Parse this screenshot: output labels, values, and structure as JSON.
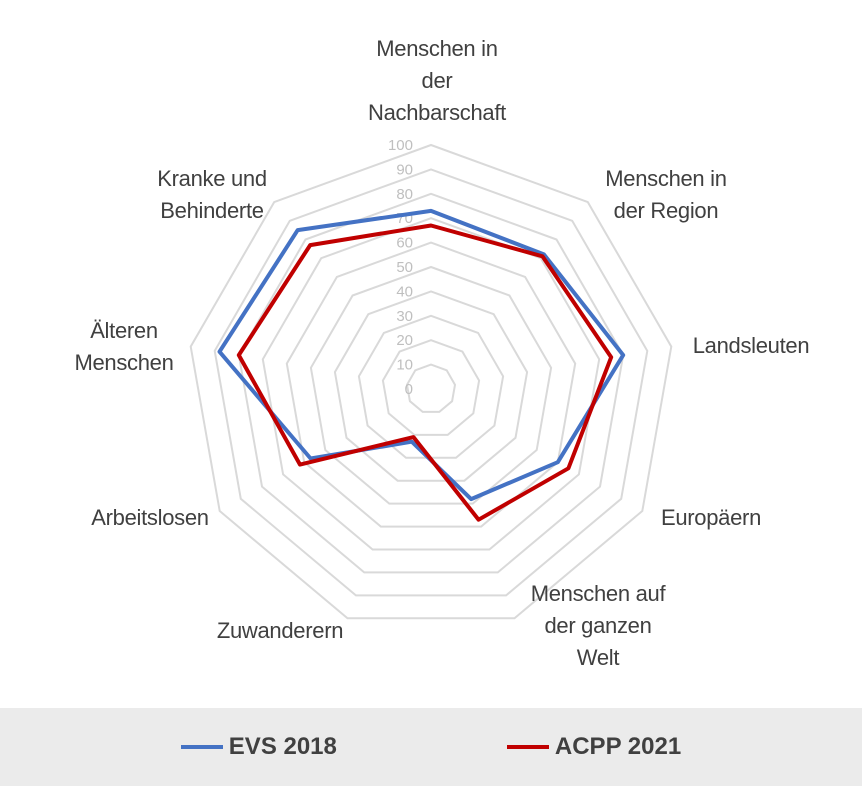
{
  "chart_data": {
    "type": "radar",
    "categories": [
      [
        "Menschen in",
        "der",
        "Nachbarschaft"
      ],
      [
        "Menschen in",
        "der Region"
      ],
      [
        "Landsleuten"
      ],
      [
        "Europäern"
      ],
      [
        "Menschen auf",
        "der ganzen",
        "Welt"
      ],
      [
        "Zuwanderern"
      ],
      [
        "Arbeitslosen"
      ],
      [
        "Älteren",
        "Menschen"
      ],
      [
        "Kranke und",
        "Behinderte"
      ]
    ],
    "axis_ticks": [
      "0",
      "10",
      "20",
      "30",
      "40",
      "50",
      "60",
      "70",
      "80",
      "90",
      "100"
    ],
    "rmax": 100,
    "series": [
      {
        "name": "EVS 2018",
        "color": "#4472c4",
        "values": [
          73,
          72,
          80,
          60,
          48,
          23,
          57,
          88,
          85
        ]
      },
      {
        "name": "ACPP 2021",
        "color": "#c00000",
        "values": [
          67,
          71,
          75,
          65,
          57,
          21,
          62,
          80,
          77
        ]
      }
    ],
    "legend_position": "bottom",
    "grid": true
  },
  "legend": {
    "items": [
      {
        "label": "EVS 2018",
        "color": "#4472c4"
      },
      {
        "label": "ACPP 2021",
        "color": "#c00000"
      }
    ]
  }
}
